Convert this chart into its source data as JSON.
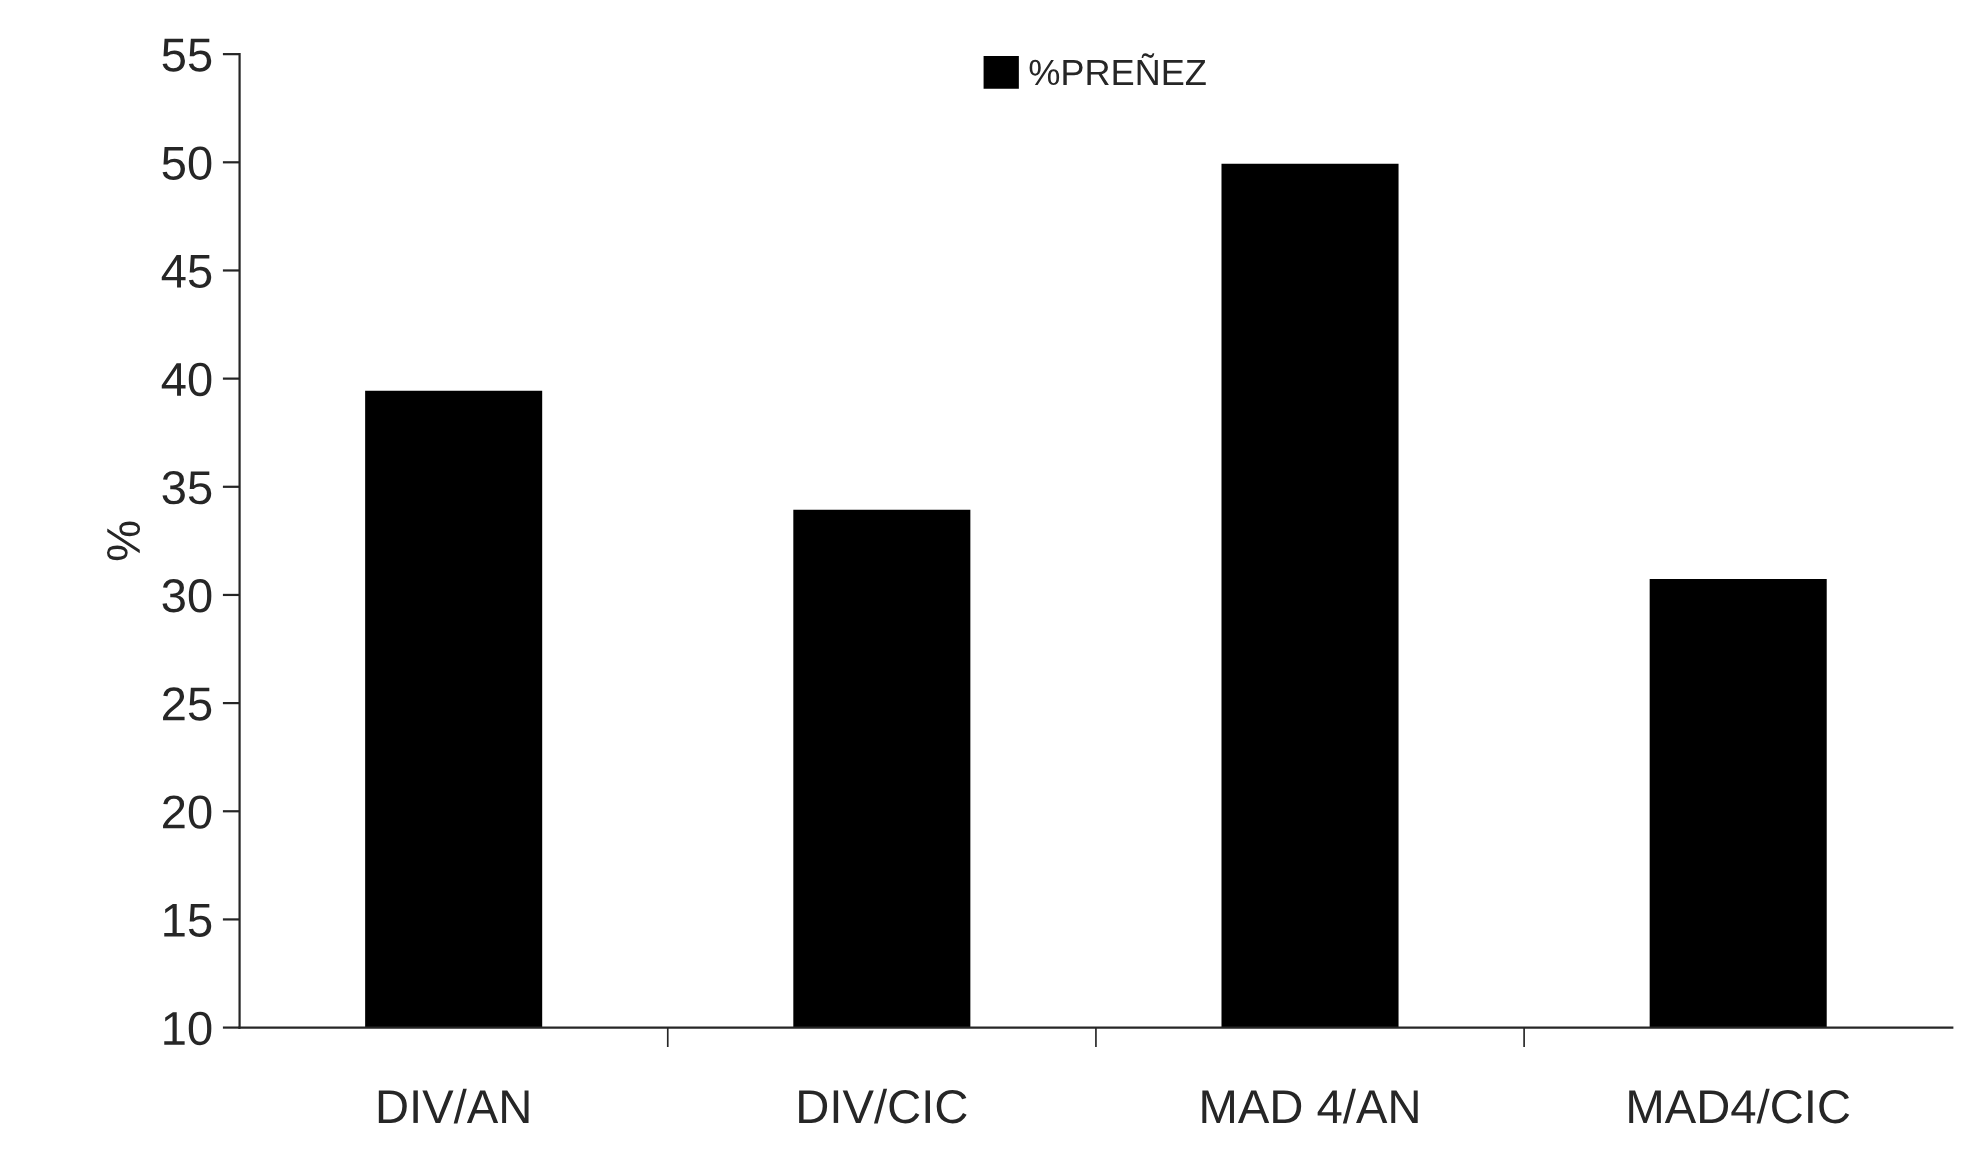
{
  "chart_data": {
    "type": "bar",
    "ylabel": "%",
    "categories": [
      "DIV/AN",
      "DIV/CIC",
      "MAD 4/AN",
      "MAD4/CIC"
    ],
    "series": [
      {
        "name": "%PREÑEZ",
        "color": "#000000",
        "values": [
          39.5,
          34,
          50,
          30.8
        ]
      }
    ],
    "ylim": [
      10,
      55
    ],
    "yticks": [
      10,
      15,
      20,
      25,
      30,
      35,
      40,
      45,
      50,
      55
    ],
    "grid": false,
    "legend": "top"
  }
}
